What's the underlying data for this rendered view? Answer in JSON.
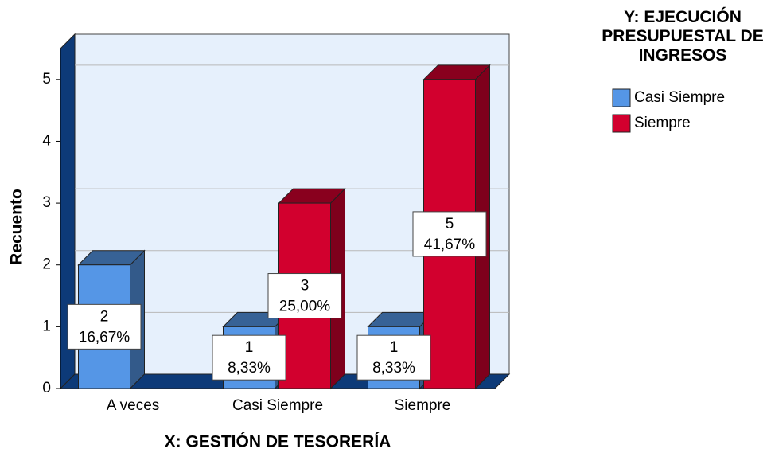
{
  "chart_data": {
    "type": "bar3d",
    "x_label": "X: GESTIÓN DE TESORERÍA",
    "y_label": "Recuento",
    "legend_title": "Y: EJECUCIÓN PRESUPUESTAL DE INGRESOS",
    "categories": [
      "A veces",
      "Casi Siempre",
      "Siempre"
    ],
    "series": [
      {
        "name": "Casi Siempre",
        "color": "#5596e6",
        "values": [
          2,
          1,
          1
        ],
        "percent_labels": [
          "16,67%",
          "8,33%",
          "8,33%"
        ]
      },
      {
        "name": "Siempre",
        "color": "#d2002e",
        "values": [
          null,
          3,
          5
        ],
        "percent_labels": [
          null,
          "25,00%",
          "41,67%"
        ]
      }
    ],
    "ylim": [
      0,
      5.5
    ],
    "yticks": [
      0,
      1,
      2,
      3,
      4,
      5
    ],
    "grid": true,
    "legend": "right"
  }
}
